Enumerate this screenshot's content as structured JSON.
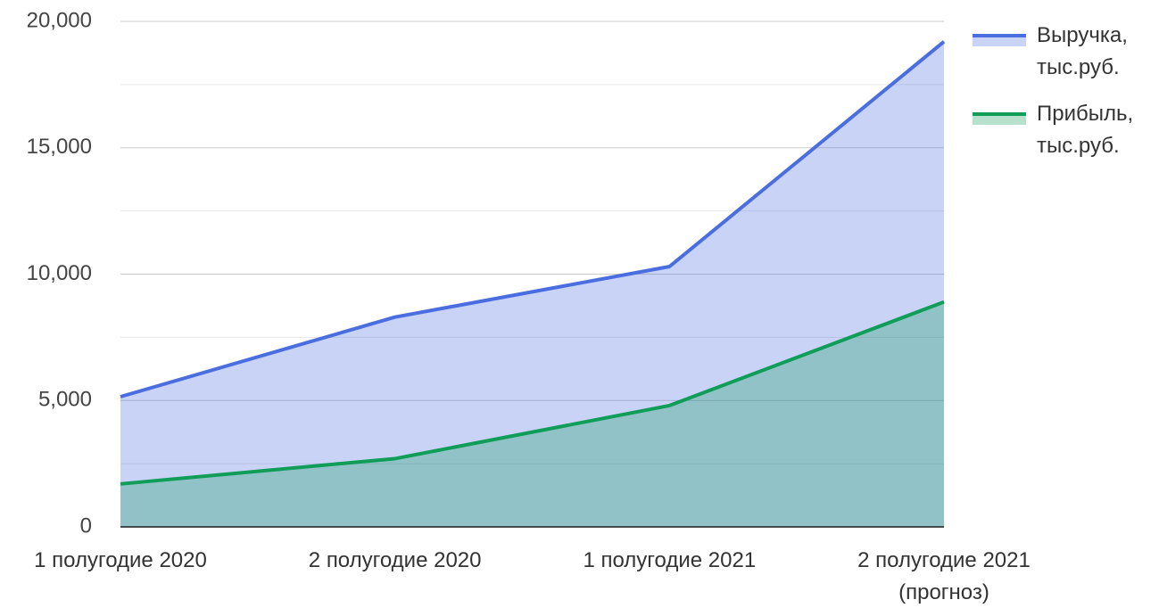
{
  "chart_data": {
    "type": "area",
    "categories": [
      "1 полугодие 2020",
      "2 полугодие 2020",
      "1 полугодие 2021",
      "2 полугодие 2021\n(прогноз)"
    ],
    "series": [
      {
        "name": "Выручка,\nтыс.руб.",
        "color": "#4a6ee0",
        "values": [
          5150,
          8300,
          10300,
          19200
        ]
      },
      {
        "name": "Прибыль,\nтыс.руб.",
        "color": "#0f9d58",
        "values": [
          1700,
          2700,
          4800,
          8900
        ]
      }
    ],
    "ylim": [
      0,
      20000
    ],
    "yticks": [
      0,
      {
        "value": 5000,
        "label": "5,000"
      },
      {
        "value": 10000,
        "label": "10,000"
      },
      {
        "value": 15000,
        "label": "15,000"
      },
      {
        "value": 20000,
        "label": "20,000"
      }
    ],
    "grid": true,
    "legend": "right"
  }
}
